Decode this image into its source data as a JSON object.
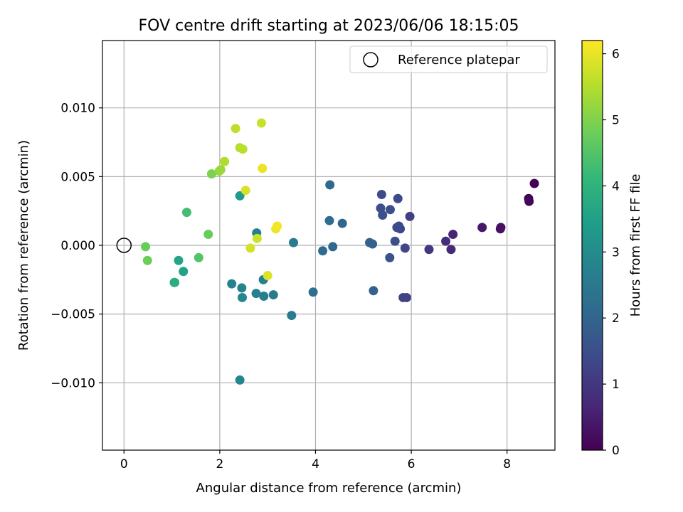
{
  "chart_data": {
    "type": "scatter",
    "title": "FOV centre drift starting at 2023/06/06 18:15:05",
    "xlabel": "Angular distance from reference (arcmin)",
    "ylabel": "Rotation from reference (arcmin)",
    "xlim": [
      -0.45,
      9.0
    ],
    "ylim": [
      -0.0149,
      0.0149
    ],
    "xticks": [
      0,
      2,
      4,
      6,
      8
    ],
    "xtick_labels": [
      "0",
      "2",
      "4",
      "6",
      "8"
    ],
    "yticks": [
      -0.01,
      -0.005,
      0.0,
      0.005,
      0.01
    ],
    "ytick_labels": [
      "−0.010",
      "−0.005",
      "0.000",
      "0.005",
      "0.010"
    ],
    "grid": true,
    "legend": {
      "position": "top-right",
      "entries": [
        "Reference platepar"
      ]
    },
    "reference_point": {
      "x": 0.0,
      "y": 0.0
    },
    "colorbar": {
      "label": "Hours from first FF file",
      "range": [
        0,
        6.2
      ],
      "ticks": [
        0,
        1,
        2,
        3,
        4,
        5,
        6
      ],
      "tick_labels": [
        "0",
        "1",
        "2",
        "3",
        "4",
        "5",
        "6"
      ],
      "colormap": "viridis",
      "colormap_stops": [
        "#440154",
        "#482878",
        "#3e4989",
        "#31688e",
        "#26828e",
        "#1f9e89",
        "#35b779",
        "#6ece58",
        "#b5de2b",
        "#fde725"
      ]
    },
    "points": [
      {
        "x": 8.57,
        "y": 0.0045,
        "c": 0.0
      },
      {
        "x": 8.45,
        "y": 0.0034,
        "c": 0.05
      },
      {
        "x": 8.46,
        "y": 0.0032,
        "c": 0.08
      },
      {
        "x": 7.87,
        "y": 0.0013,
        "c": 0.25
      },
      {
        "x": 7.86,
        "y": 0.0012,
        "c": 0.28
      },
      {
        "x": 7.48,
        "y": 0.0013,
        "c": 0.4
      },
      {
        "x": 6.87,
        "y": 0.0008,
        "c": 0.6
      },
      {
        "x": 6.83,
        "y": -0.0003,
        "c": 0.7
      },
      {
        "x": 6.72,
        "y": 0.0003,
        "c": 0.8
      },
      {
        "x": 6.37,
        "y": -0.0003,
        "c": 1.0
      },
      {
        "x": 5.97,
        "y": 0.0021,
        "c": 1.2
      },
      {
        "x": 5.9,
        "y": -0.0038,
        "c": 1.2
      },
      {
        "x": 5.83,
        "y": -0.0038,
        "c": 1.25
      },
      {
        "x": 5.87,
        "y": -0.0002,
        "c": 1.3
      },
      {
        "x": 5.77,
        "y": 0.0012,
        "c": 1.35
      },
      {
        "x": 5.74,
        "y": 0.0014,
        "c": 1.35
      },
      {
        "x": 5.72,
        "y": 0.0034,
        "c": 1.4
      },
      {
        "x": 5.7,
        "y": 0.0013,
        "c": 1.4
      },
      {
        "x": 5.66,
        "y": 0.0003,
        "c": 1.5
      },
      {
        "x": 5.56,
        "y": 0.0026,
        "c": 1.5
      },
      {
        "x": 5.55,
        "y": -0.0009,
        "c": 1.6
      },
      {
        "x": 5.4,
        "y": 0.0022,
        "c": 1.55
      },
      {
        "x": 5.38,
        "y": 0.0037,
        "c": 1.45
      },
      {
        "x": 5.36,
        "y": 0.0027,
        "c": 1.5
      },
      {
        "x": 5.21,
        "y": -0.0033,
        "c": 1.9
      },
      {
        "x": 5.19,
        "y": 0.0001,
        "c": 1.9
      },
      {
        "x": 5.13,
        "y": 0.0002,
        "c": 1.95
      },
      {
        "x": 4.56,
        "y": 0.0016,
        "c": 2.05
      },
      {
        "x": 4.36,
        "y": -0.0001,
        "c": 2.1
      },
      {
        "x": 4.3,
        "y": 0.0044,
        "c": 2.1
      },
      {
        "x": 4.29,
        "y": 0.0018,
        "c": 2.2
      },
      {
        "x": 4.15,
        "y": -0.0004,
        "c": 2.15
      },
      {
        "x": 3.95,
        "y": -0.0034,
        "c": 2.25
      },
      {
        "x": 3.54,
        "y": 0.0002,
        "c": 2.6
      },
      {
        "x": 3.5,
        "y": -0.0051,
        "c": 2.6
      },
      {
        "x": 3.12,
        "y": -0.0036,
        "c": 2.55
      },
      {
        "x": 2.92,
        "y": -0.0037,
        "c": 2.65
      },
      {
        "x": 2.91,
        "y": -0.0025,
        "c": 2.7
      },
      {
        "x": 2.77,
        "y": 0.0009,
        "c": 2.65
      },
      {
        "x": 2.76,
        "y": -0.0035,
        "c": 2.75
      },
      {
        "x": 2.46,
        "y": -0.0031,
        "c": 2.75
      },
      {
        "x": 2.47,
        "y": -0.0038,
        "c": 2.85
      },
      {
        "x": 2.42,
        "y": -0.0098,
        "c": 2.8
      },
      {
        "x": 2.25,
        "y": -0.0028,
        "c": 2.75
      },
      {
        "x": 2.42,
        "y": 0.0036,
        "c": 3.35
      },
      {
        "x": 1.24,
        "y": -0.0019,
        "c": 3.55
      },
      {
        "x": 1.14,
        "y": -0.0011,
        "c": 3.6
      },
      {
        "x": 1.05,
        "y": -0.0027,
        "c": 3.8
      },
      {
        "x": 1.06,
        "y": -0.0027,
        "c": 3.85
      },
      {
        "x": 1.31,
        "y": 0.0024,
        "c": 4.3
      },
      {
        "x": 1.56,
        "y": -0.0009,
        "c": 4.5
      },
      {
        "x": 1.76,
        "y": 0.0008,
        "c": 4.75
      },
      {
        "x": 0.45,
        "y": -0.0001,
        "c": 4.75
      },
      {
        "x": 0.49,
        "y": -0.0011,
        "c": 4.8
      },
      {
        "x": 1.83,
        "y": 0.0052,
        "c": 4.95
      },
      {
        "x": 1.99,
        "y": 0.0054,
        "c": 5.2
      },
      {
        "x": 2.02,
        "y": 0.0055,
        "c": 5.25
      },
      {
        "x": 2.1,
        "y": 0.0061,
        "c": 5.45
      },
      {
        "x": 2.42,
        "y": 0.0071,
        "c": 5.5
      },
      {
        "x": 2.48,
        "y": 0.007,
        "c": 5.55
      },
      {
        "x": 2.33,
        "y": 0.0085,
        "c": 5.6
      },
      {
        "x": 2.87,
        "y": 0.0089,
        "c": 5.7
      },
      {
        "x": 2.54,
        "y": 0.004,
        "c": 5.85
      },
      {
        "x": 2.64,
        "y": -0.0002,
        "c": 5.8
      },
      {
        "x": 2.78,
        "y": 0.0005,
        "c": 5.75
      },
      {
        "x": 2.89,
        "y": 0.0056,
        "c": 6.0
      },
      {
        "x": 3.0,
        "y": -0.0022,
        "c": 5.9
      },
      {
        "x": 3.17,
        "y": 0.0012,
        "c": 6.05
      },
      {
        "x": 3.2,
        "y": 0.0014,
        "c": 6.1
      }
    ]
  }
}
